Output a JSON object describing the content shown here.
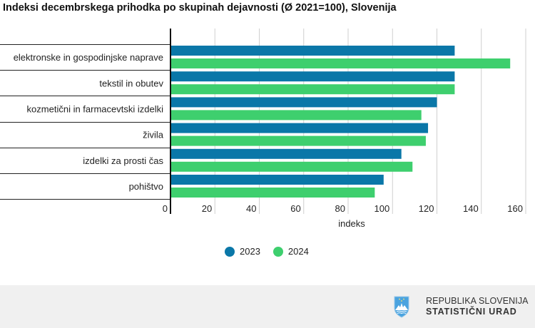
{
  "footer": {
    "line1": "REPUBLIKA SLOVENIJA",
    "line2": "STATISTIČNI URAD",
    "logo_icon": "slovenia-coat-of-arms-icon"
  },
  "chart_data": {
    "type": "bar",
    "orientation": "horizontal",
    "title": "Indeksi decembrskega prihodka po skupinah dejavnosti (Ø 2021=100), Slovenija",
    "xlabel": "indeks",
    "ylabel": "",
    "xlim": [
      0,
      160
    ],
    "xticks": [
      0,
      20,
      40,
      60,
      80,
      100,
      120,
      140,
      160
    ],
    "grid": true,
    "legend_position": "bottom",
    "categories": [
      "elektronske in gospodinjske naprave",
      "tekstil in obutev",
      "kozmetični in farmacevtski izdelki",
      "živila",
      "izdelki za prosti čas",
      "pohištvo"
    ],
    "series": [
      {
        "name": "2023",
        "color": "#0a77a8",
        "values": [
          128,
          128,
          120,
          116,
          104,
          96
        ]
      },
      {
        "name": "2024",
        "color": "#3ecf6e",
        "values": [
          153,
          128,
          113,
          115,
          109,
          92
        ]
      }
    ]
  }
}
